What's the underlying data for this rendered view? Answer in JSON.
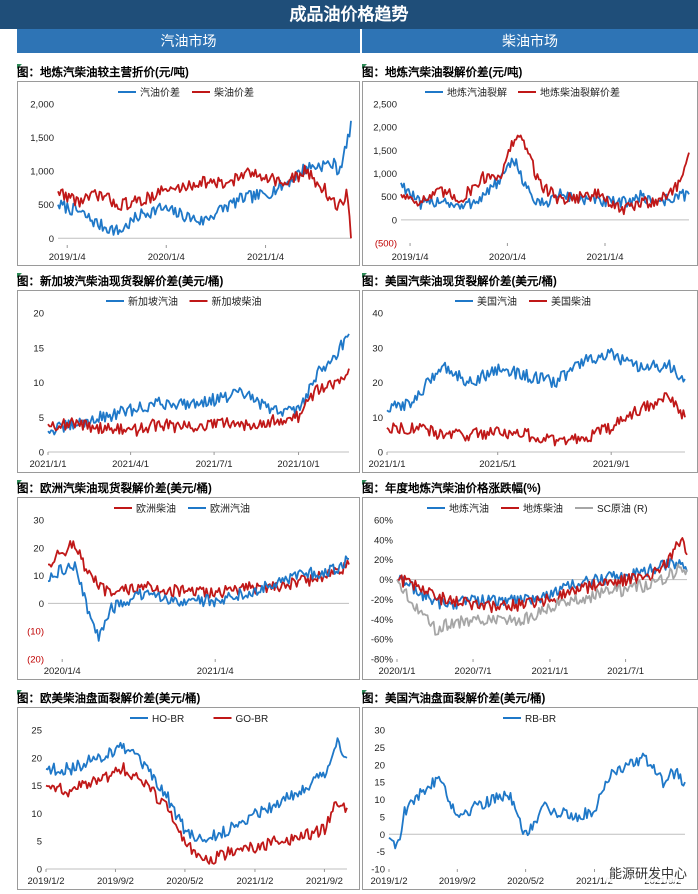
{
  "header": {
    "title": "成品油价格趋势",
    "gasoline_section": "汽油市场",
    "diesel_section": "柴油市场"
  },
  "watermark": "能源研发中心",
  "chart_data": [
    {
      "id": "c1",
      "type": "line",
      "title": "图：地炼汽柴油较主营折价(元/吨)",
      "x_range": [
        "2018-12-01",
        "2021-11-15"
      ],
      "x_ticks": [
        "2019/1/4",
        "2020/1/4",
        "2021/1/4"
      ],
      "y_ticks": [
        0,
        500,
        1000,
        1500,
        2000
      ],
      "y_tick_labels": [
        "0",
        "500",
        "1,000",
        "1,500",
        "2,000"
      ],
      "ylim": [
        -100,
        2000
      ],
      "legend_position": "top-left",
      "series": [
        {
          "name": "汽油价差",
          "color": "#1f78c8",
          "x": [
            "2018-12-01",
            "2019-02-15",
            "2019-05-01",
            "2019-07-15",
            "2019-10-01",
            "2019-12-15",
            "2020-03-01",
            "2020-05-15",
            "2020-08-01",
            "2020-10-15",
            "2021-01-01",
            "2021-03-15",
            "2021-06-01",
            "2021-08-15",
            "2021-09-15",
            "2021-10-01",
            "2021-11-01",
            "2021-11-15"
          ],
          "y": [
            500,
            400,
            200,
            100,
            350,
            450,
            350,
            250,
            450,
            600,
            650,
            800,
            1050,
            1100,
            1100,
            1000,
            1400,
            1750
          ]
        },
        {
          "name": "柴油价差",
          "color": "#c01818",
          "x": [
            "2018-12-01",
            "2019-02-15",
            "2019-05-01",
            "2019-07-15",
            "2019-10-01",
            "2019-12-15",
            "2020-03-01",
            "2020-05-15",
            "2020-08-01",
            "2020-10-15",
            "2021-01-01",
            "2021-03-15",
            "2021-06-01",
            "2021-08-15",
            "2021-09-15",
            "2021-10-01",
            "2021-11-01",
            "2021-11-15"
          ],
          "y": [
            700,
            550,
            650,
            500,
            550,
            700,
            750,
            850,
            800,
            950,
            950,
            800,
            1000,
            700,
            500,
            450,
            700,
            0
          ]
        }
      ]
    },
    {
      "id": "c2",
      "type": "line",
      "title": "图：地炼汽柴油裂解价差(元/吨)",
      "x_range": [
        "2018-12-01",
        "2021-11-15"
      ],
      "x_ticks": [
        "2019/1/4",
        "2020/1/4",
        "2021/1/4"
      ],
      "y_ticks": [
        -500,
        0,
        500,
        1000,
        1500,
        2000,
        2500
      ],
      "y_tick_labels": [
        "(500)",
        "0",
        "500",
        "1,000",
        "1,500",
        "2,000",
        "2,500"
      ],
      "ylim": [
        -500,
        2500
      ],
      "legend_position": "top-left",
      "series": [
        {
          "name": "地炼汽油裂解",
          "color": "#1f78c8",
          "x": [
            "2018-12-01",
            "2019-02-15",
            "2019-05-01",
            "2019-07-15",
            "2019-10-01",
            "2019-12-15",
            "2020-02-01",
            "2020-03-15",
            "2020-05-01",
            "2020-07-15",
            "2020-10-01",
            "2020-12-15",
            "2021-03-01",
            "2021-05-15",
            "2021-08-01",
            "2021-10-01",
            "2021-11-15"
          ],
          "y": [
            800,
            300,
            450,
            250,
            500,
            900,
            1300,
            700,
            300,
            550,
            450,
            400,
            350,
            500,
            400,
            500,
            550
          ]
        },
        {
          "name": "地炼柴油裂解价差",
          "color": "#c01818",
          "x": [
            "2018-12-01",
            "2019-02-15",
            "2019-05-01",
            "2019-07-15",
            "2019-10-01",
            "2019-12-15",
            "2020-02-01",
            "2020-03-15",
            "2020-05-01",
            "2020-07-15",
            "2020-10-01",
            "2020-12-15",
            "2021-03-01",
            "2021-05-15",
            "2021-08-01",
            "2021-10-01",
            "2021-11-15"
          ],
          "y": [
            550,
            400,
            600,
            450,
            900,
            1000,
            1800,
            1600,
            800,
            450,
            500,
            550,
            200,
            350,
            450,
            700,
            1450
          ]
        }
      ]
    },
    {
      "id": "c3",
      "type": "line",
      "title": "图：新加坡汽柴油现货裂解价差(美元/桶)",
      "x_range": [
        "2021-01-01",
        "2021-11-25"
      ],
      "x_ticks": [
        "2021/1/1",
        "2021/4/1",
        "2021/7/1",
        "2021/10/1"
      ],
      "y_ticks": [
        0,
        5,
        10,
        15,
        20
      ],
      "y_tick_labels": [
        "0",
        "5",
        "10",
        "15",
        "20"
      ],
      "ylim": [
        0,
        20
      ],
      "legend_position": "top-center",
      "series": [
        {
          "name": "新加坡汽油",
          "color": "#1f78c8",
          "x": [
            "2021-01-01",
            "2021-02-01",
            "2021-03-01",
            "2021-04-01",
            "2021-05-01",
            "2021-06-01",
            "2021-07-01",
            "2021-08-01",
            "2021-09-01",
            "2021-10-01",
            "2021-10-20",
            "2021-11-10",
            "2021-11-25"
          ],
          "y": [
            3,
            4,
            5,
            6,
            7,
            7,
            7.5,
            8.5,
            6,
            6,
            11,
            14,
            17
          ]
        },
        {
          "name": "新加坡柴油",
          "color": "#c01818",
          "x": [
            "2021-01-01",
            "2021-02-01",
            "2021-03-01",
            "2021-04-01",
            "2021-05-01",
            "2021-06-01",
            "2021-07-01",
            "2021-08-01",
            "2021-09-01",
            "2021-10-01",
            "2021-10-20",
            "2021-11-10",
            "2021-11-25"
          ],
          "y": [
            4,
            4,
            3.5,
            3,
            4,
            3.5,
            4,
            4,
            4.5,
            5,
            9,
            10,
            12
          ]
        }
      ]
    },
    {
      "id": "c4",
      "type": "line",
      "title": "图：美国汽柴油现货裂解价差(美元/桶)",
      "x_range": [
        "2021-01-01",
        "2021-11-20"
      ],
      "x_ticks": [
        "2021/1/1",
        "2021/5/1",
        "2021/9/1"
      ],
      "y_ticks": [
        0,
        10,
        20,
        30,
        40
      ],
      "y_tick_labels": [
        "0",
        "10",
        "20",
        "30",
        "40"
      ],
      "ylim": [
        0,
        40
      ],
      "legend_position": "top-center",
      "series": [
        {
          "name": "美国汽油",
          "color": "#1f78c8",
          "x": [
            "2021-01-01",
            "2021-02-01",
            "2021-03-01",
            "2021-04-01",
            "2021-05-01",
            "2021-06-01",
            "2021-07-01",
            "2021-08-01",
            "2021-09-01",
            "2021-10-01",
            "2021-11-01",
            "2021-11-20"
          ],
          "y": [
            12,
            15,
            25,
            20,
            24,
            22,
            20,
            26,
            28,
            24,
            25,
            21
          ]
        },
        {
          "name": "美国柴油",
          "color": "#c01818",
          "x": [
            "2021-01-01",
            "2021-02-01",
            "2021-03-01",
            "2021-04-01",
            "2021-05-01",
            "2021-06-01",
            "2021-07-01",
            "2021-08-01",
            "2021-09-01",
            "2021-10-01",
            "2021-11-01",
            "2021-11-20"
          ],
          "y": [
            7,
            7,
            5,
            5,
            6,
            5,
            3,
            4,
            7,
            12,
            16,
            10
          ]
        }
      ]
    },
    {
      "id": "c5",
      "type": "line",
      "title": "图：欧洲汽柴油现货裂解价差(美元/桶)",
      "x_range": [
        "2019-12-01",
        "2021-11-20"
      ],
      "x_ticks": [
        "2020/1/4",
        "2021/1/4"
      ],
      "y_ticks": [
        -20,
        -10,
        0,
        10,
        20,
        30
      ],
      "y_tick_labels": [
        "(20)",
        "(10)",
        "0",
        "10",
        "20",
        "30"
      ],
      "ylim": [
        -20,
        30
      ],
      "legend_position": "top-center",
      "series": [
        {
          "name": "欧洲柴油",
          "color": "#c01818",
          "x": [
            "2019-12-01",
            "2020-01-01",
            "2020-02-01",
            "2020-03-01",
            "2020-04-01",
            "2020-05-01",
            "2020-07-01",
            "2020-09-01",
            "2020-11-01",
            "2021-01-01",
            "2021-03-01",
            "2021-05-01",
            "2021-07-01",
            "2021-09-01",
            "2021-11-01",
            "2021-11-20"
          ],
          "y": [
            14,
            18,
            22,
            12,
            6,
            3,
            6,
            5,
            4,
            4,
            5,
            6,
            7,
            9,
            12,
            14
          ]
        },
        {
          "name": "欧洲汽油",
          "color": "#1f78c8",
          "x": [
            "2019-12-01",
            "2020-01-01",
            "2020-02-01",
            "2020-03-01",
            "2020-04-01",
            "2020-05-01",
            "2020-07-01",
            "2020-09-01",
            "2020-11-01",
            "2021-01-01",
            "2021-03-01",
            "2021-05-01",
            "2021-07-01",
            "2021-09-01",
            "2021-11-01",
            "2021-11-20"
          ],
          "y": [
            8,
            12,
            14,
            0,
            -12,
            -2,
            3,
            2,
            1,
            1,
            3,
            6,
            9,
            11,
            13,
            16
          ]
        }
      ]
    },
    {
      "id": "c6",
      "type": "line",
      "title": "图：年度地炼汽柴油价格涨跌幅(%)",
      "x_range": [
        "2020-01-01",
        "2021-11-25"
      ],
      "x_ticks": [
        "2020/1/1",
        "2020/7/1",
        "2021/1/1",
        "2021/7/1"
      ],
      "y_ticks": [
        -80,
        -60,
        -40,
        -20,
        0,
        20,
        40,
        60
      ],
      "y_tick_labels": [
        "-80%",
        "-60%",
        "-40%",
        "-20%",
        "0%",
        "20%",
        "40%",
        "60%"
      ],
      "ylim": [
        -80,
        60
      ],
      "legend_position": "top",
      "series": [
        {
          "name": "地炼汽油",
          "color": "#1f78c8",
          "x": [
            "2020-01-01",
            "2020-02-01",
            "2020-03-01",
            "2020-04-01",
            "2020-05-01",
            "2020-07-01",
            "2020-09-01",
            "2020-11-01",
            "2021-01-01",
            "2021-03-01",
            "2021-05-01",
            "2021-07-01",
            "2021-09-01",
            "2021-10-15",
            "2021-11-10",
            "2021-11-25"
          ],
          "y": [
            0,
            -5,
            -15,
            -22,
            -25,
            -20,
            -22,
            -20,
            -15,
            -5,
            0,
            5,
            10,
            15,
            20,
            8
          ]
        },
        {
          "name": "地炼柴油",
          "color": "#c01818",
          "x": [
            "2020-01-01",
            "2020-02-01",
            "2020-03-01",
            "2020-04-01",
            "2020-05-01",
            "2020-07-01",
            "2020-09-01",
            "2020-11-01",
            "2021-01-01",
            "2021-03-01",
            "2021-05-01",
            "2021-07-01",
            "2021-09-01",
            "2021-10-15",
            "2021-11-10",
            "2021-11-25"
          ],
          "y": [
            0,
            -3,
            -10,
            -18,
            -20,
            -25,
            -28,
            -25,
            -20,
            -10,
            -5,
            0,
            5,
            20,
            42,
            25
          ]
        },
        {
          "name": "SC原油 (R)",
          "color": "#a6a6a6",
          "x": [
            "2020-01-01",
            "2020-02-01",
            "2020-03-01",
            "2020-04-01",
            "2020-05-01",
            "2020-07-01",
            "2020-09-01",
            "2020-11-01",
            "2021-01-01",
            "2021-03-01",
            "2021-05-01",
            "2021-07-01",
            "2021-09-01",
            "2021-10-15",
            "2021-11-10",
            "2021-11-25"
          ],
          "y": [
            0,
            -20,
            -35,
            -50,
            -45,
            -40,
            -42,
            -40,
            -28,
            -20,
            -15,
            -10,
            -5,
            5,
            12,
            10
          ]
        }
      ]
    },
    {
      "id": "c7",
      "type": "line",
      "title": "图：欧美柴油盘面裂解价差(美元/桶)",
      "x_range": [
        "2019-01-02",
        "2021-11-20"
      ],
      "x_ticks": [
        "2019/1/2",
        "2019/9/2",
        "2020/5/2",
        "2021/1/2",
        "2021/9/2"
      ],
      "y_ticks": [
        0,
        5,
        10,
        15,
        20,
        25
      ],
      "y_tick_labels": [
        "0",
        "5",
        "10",
        "15",
        "20",
        "25"
      ],
      "ylim": [
        0,
        25
      ],
      "legend_position": "top-center",
      "series": [
        {
          "name": "HO-BR",
          "color": "#1f78c8",
          "x": [
            "2019-01-02",
            "2019-04-01",
            "2019-07-01",
            "2019-10-01",
            "2019-12-01",
            "2020-03-01",
            "2020-05-01",
            "2020-07-01",
            "2020-10-01",
            "2021-01-01",
            "2021-04-01",
            "2021-07-01",
            "2021-09-01",
            "2021-10-15",
            "2021-11-20"
          ],
          "y": [
            18,
            18,
            20,
            22,
            19,
            13,
            7,
            5,
            7,
            10,
            12,
            15,
            17,
            23,
            20
          ]
        },
        {
          "name": "GO-BR",
          "color": "#c01818",
          "x": [
            "2019-01-02",
            "2019-04-01",
            "2019-07-01",
            "2019-10-01",
            "2019-12-01",
            "2020-03-01",
            "2020-05-01",
            "2020-07-01",
            "2020-10-01",
            "2021-01-01",
            "2021-04-01",
            "2021-07-01",
            "2021-09-01",
            "2021-10-15",
            "2021-11-20"
          ],
          "y": [
            15,
            14,
            16,
            18,
            16,
            11,
            5,
            1,
            3,
            4,
            5,
            6,
            7,
            12,
            11
          ]
        }
      ]
    },
    {
      "id": "c8",
      "type": "line",
      "title": "图：美国汽油盘面裂解价差(美元/桶)",
      "x_range": [
        "2019-01-02",
        "2021-11-20"
      ],
      "x_ticks": [
        "2019/1/2",
        "2019/9/2",
        "2020/5/2",
        "2021/1/2",
        "2021/9/2"
      ],
      "y_ticks": [
        -10,
        -5,
        0,
        5,
        10,
        15,
        20,
        25,
        30
      ],
      "y_tick_labels": [
        "-10",
        "-5",
        "0",
        "5",
        "10",
        "15",
        "20",
        "25",
        "30"
      ],
      "ylim": [
        -10,
        30
      ],
      "legend_position": "top-center",
      "series": [
        {
          "name": "RB-BR",
          "color": "#1f78c8",
          "x": [
            "2019-01-02",
            "2019-02-01",
            "2019-03-01",
            "2019-05-01",
            "2019-07-01",
            "2019-09-01",
            "2019-11-01",
            "2020-01-01",
            "2020-03-01",
            "2020-05-01",
            "2020-07-01",
            "2020-09-01",
            "2020-11-01",
            "2021-01-01",
            "2021-03-01",
            "2021-05-01",
            "2021-07-01",
            "2021-09-01",
            "2021-10-15",
            "2021-11-20"
          ],
          "y": [
            -1,
            -3,
            7,
            12,
            17,
            5,
            8,
            10,
            12,
            -1,
            8,
            6,
            5,
            7,
            18,
            20,
            22,
            15,
            18,
            15
          ]
        }
      ]
    }
  ]
}
